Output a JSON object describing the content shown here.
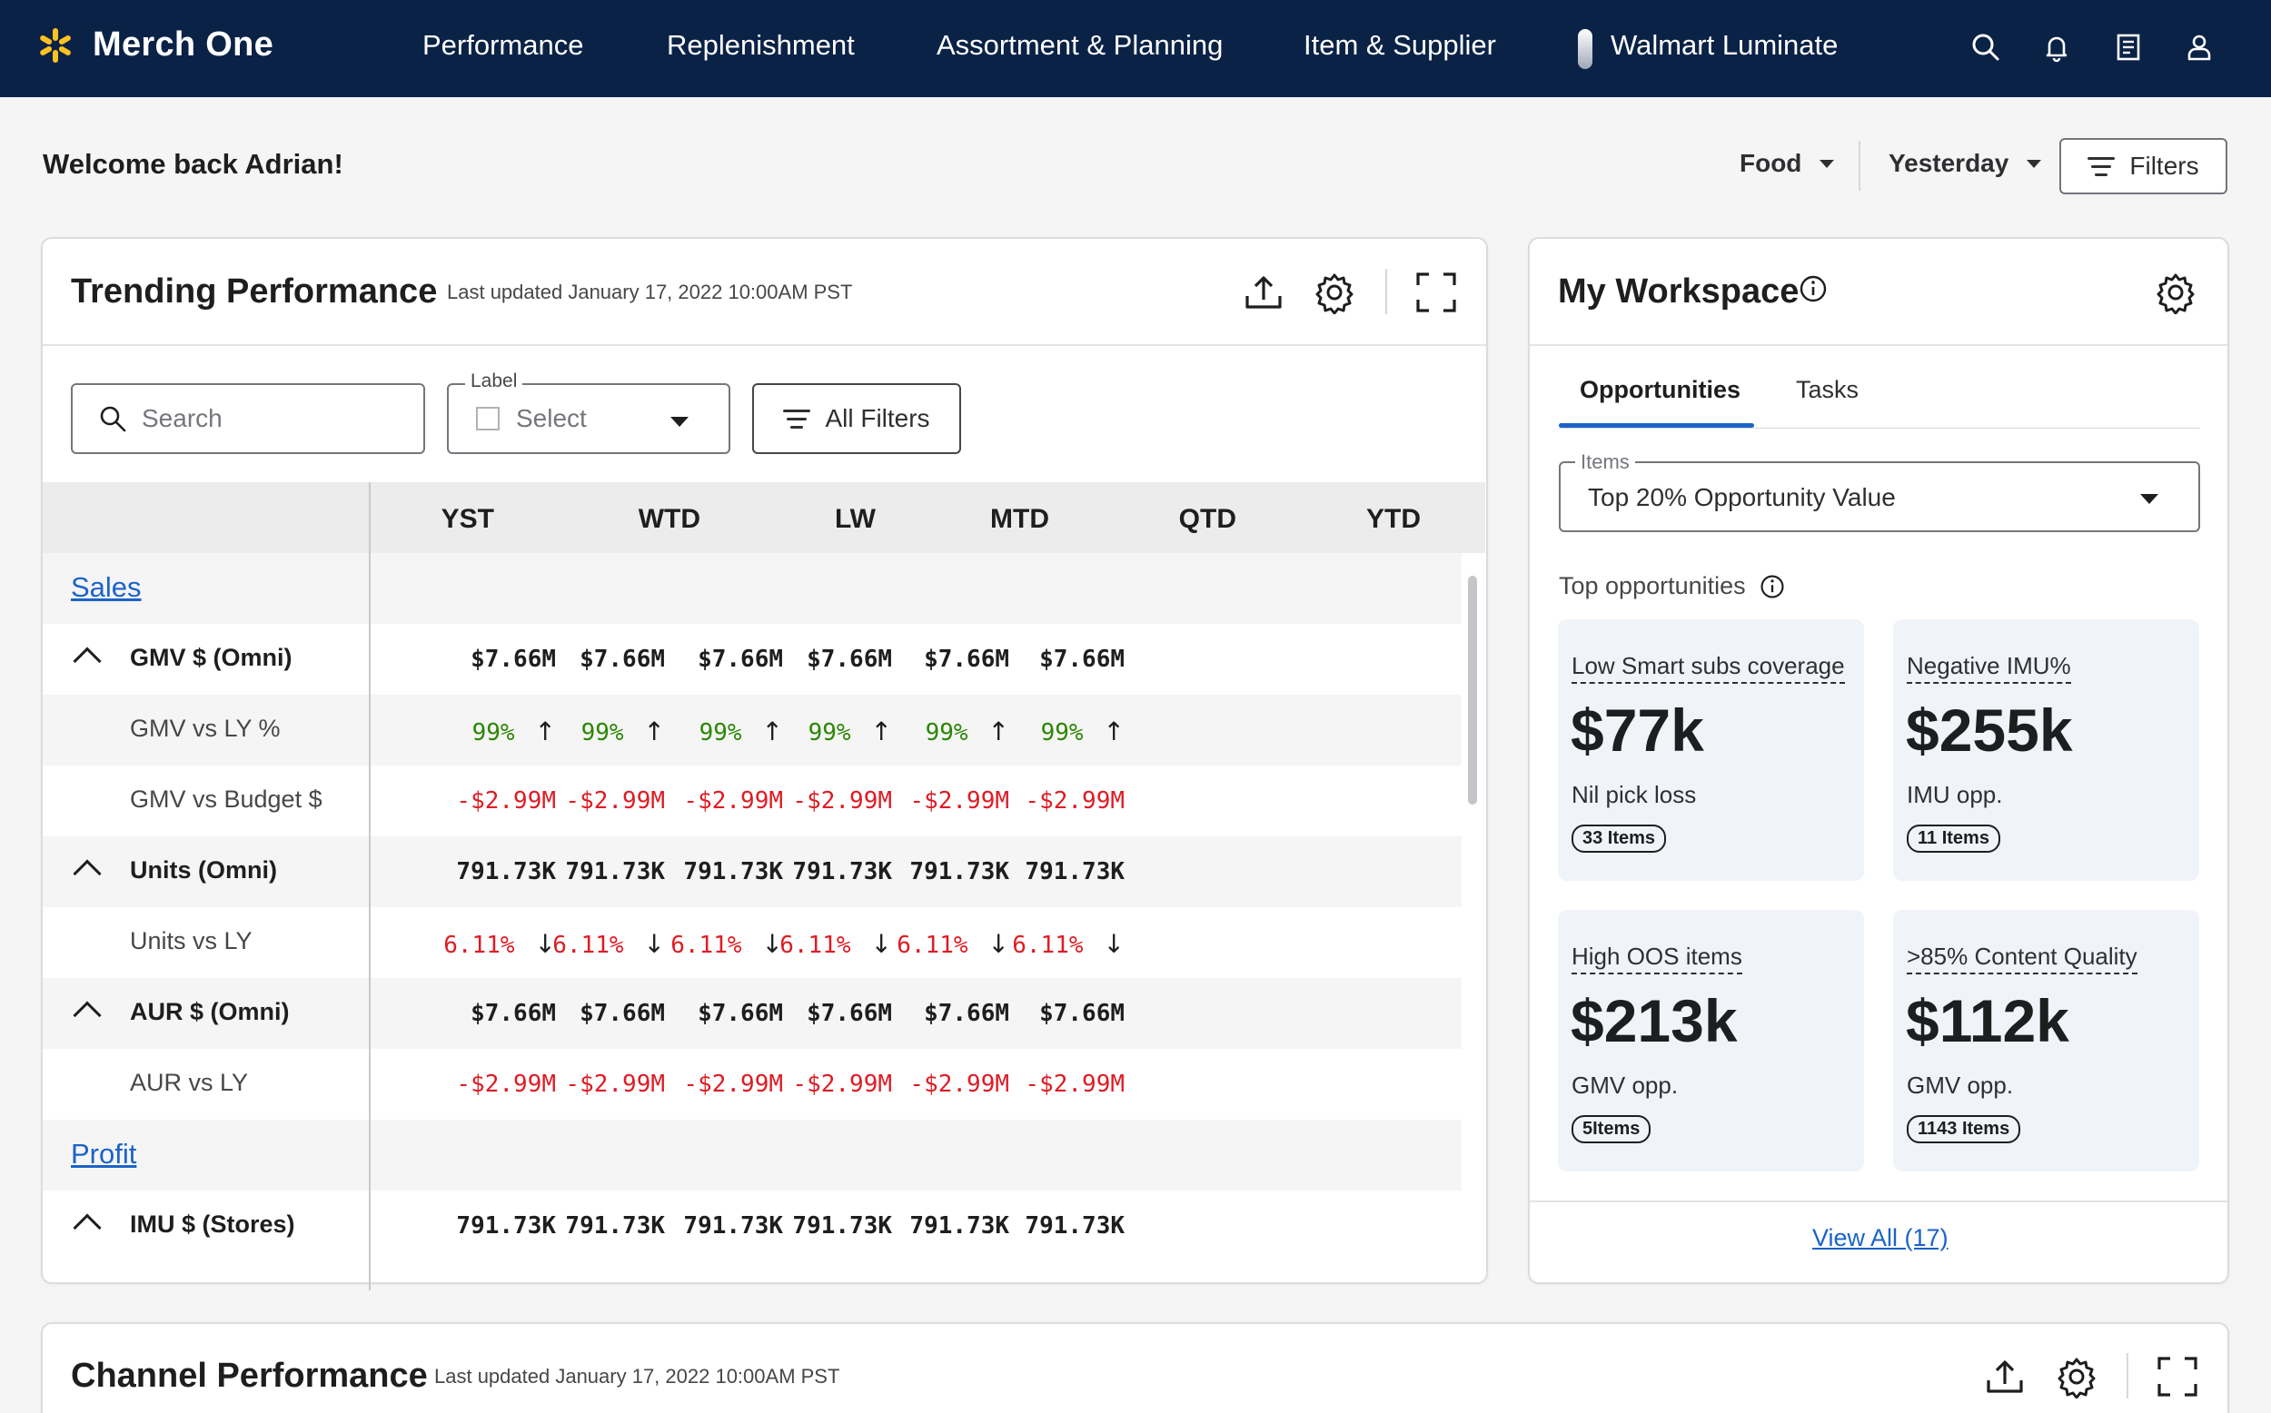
{
  "app": {
    "name": "Merch One"
  },
  "nav": {
    "items": [
      "Performance",
      "Replenishment",
      "Assortment & Planning",
      "Item & Supplier",
      "Walmart Luminate"
    ]
  },
  "header": {
    "welcome": "Welcome back Adrian!",
    "category": "Food",
    "period": "Yesterday",
    "filters_label": "Filters"
  },
  "trending": {
    "title": "Trending Performance",
    "updated": "Last updated January 17, 2022 10:00AM PST",
    "search_placeholder": "Search",
    "label_label": "Label",
    "select_placeholder": "Select",
    "all_filters": "All Filters",
    "columns": [
      "YST",
      "WTD",
      "LW",
      "MTD",
      "QTD",
      "YTD"
    ],
    "rows": [
      {
        "type": "section",
        "label": "Sales"
      },
      {
        "type": "group",
        "label": "GMV $ (Omni)",
        "values": [
          "$7.66M",
          "$7.66M",
          "$7.66M",
          "$7.66M",
          "$7.66M",
          "$7.66M"
        ]
      },
      {
        "type": "sub",
        "label": "GMV vs LY %",
        "tone": "green",
        "arrow": "up",
        "values": [
          "99%",
          "99%",
          "99%",
          "99%",
          "99%",
          "99%"
        ]
      },
      {
        "type": "sub",
        "label": "GMV vs Budget $",
        "tone": "red",
        "values": [
          "-$2.99M",
          "-$2.99M",
          "-$2.99M",
          "-$2.99M",
          "-$2.99M",
          "-$2.99M"
        ]
      },
      {
        "type": "group",
        "label": "Units (Omni)",
        "values": [
          "791.73K",
          "791.73K",
          "791.73K",
          "791.73K",
          "791.73K",
          "791.73K"
        ]
      },
      {
        "type": "sub",
        "label": "Units vs LY",
        "tone": "red",
        "arrow": "down",
        "values": [
          "6.11%",
          "6.11%",
          "6.11%",
          "6.11%",
          "6.11%",
          "6.11%"
        ]
      },
      {
        "type": "group",
        "label": "AUR $ (Omni)",
        "values": [
          "$7.66M",
          "$7.66M",
          "$7.66M",
          "$7.66M",
          "$7.66M",
          "$7.66M"
        ]
      },
      {
        "type": "sub",
        "label": "AUR vs LY",
        "tone": "red",
        "values": [
          "-$2.99M",
          "-$2.99M",
          "-$2.99M",
          "-$2.99M",
          "-$2.99M",
          "-$2.99M"
        ]
      },
      {
        "type": "section",
        "label": "Profit"
      },
      {
        "type": "group",
        "label": "IMU $ (Stores)",
        "values": [
          "791.73K",
          "791.73K",
          "791.73K",
          "791.73K",
          "791.73K",
          "791.73K"
        ]
      }
    ]
  },
  "workspace": {
    "title": "My Workspace",
    "tabs": [
      "Opportunities",
      "Tasks"
    ],
    "items_label": "Items",
    "items_value": "Top 20% Opportunity Value",
    "top_opps_label": "Top opportunities",
    "opportunities": [
      {
        "title": "Low Smart subs coverage",
        "value": "$77k",
        "sub": "Nil pick loss",
        "badge": "33 Items"
      },
      {
        "title": "Negative IMU%",
        "value": "$255k",
        "sub": "IMU opp.",
        "badge": "11 Items"
      },
      {
        "title": "High OOS items",
        "value": "$213k",
        "sub": "GMV opp.",
        "badge": "5Items"
      },
      {
        "title": ">85% Content Quality",
        "value": "$112k",
        "sub": "GMV opp.",
        "badge": "1143 Items"
      }
    ],
    "view_all": "View All (17)"
  },
  "channel": {
    "title": "Channel Performance",
    "updated": "Last updated January 17, 2022 10:00AM PST"
  },
  "colors": {
    "nav_bg": "#0b2247",
    "spark": "#ffc220",
    "positive": "#2a8703",
    "negative": "#de1c24",
    "link": "#1b63c8"
  }
}
